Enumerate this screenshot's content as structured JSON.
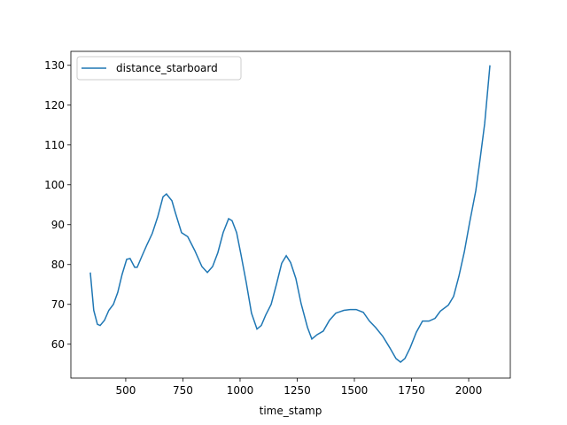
{
  "chart_data": {
    "type": "line",
    "x_label": "time_stamp",
    "xlim": [
      260,
      2182
    ],
    "xticks": [
      500,
      750,
      1000,
      1250,
      1500,
      1750,
      2000
    ],
    "ylim": [
      51.5,
      133.5
    ],
    "yticks": [
      60,
      70,
      80,
      90,
      100,
      110,
      120,
      130
    ],
    "legend": "upper left",
    "x": [
      345,
      360,
      376,
      388,
      407,
      426,
      446,
      465,
      484,
      504,
      519,
      539,
      550,
      570,
      593,
      616,
      640,
      663,
      678,
      702,
      717,
      744,
      771,
      802,
      833,
      857,
      880,
      903,
      926,
      950,
      965,
      985,
      1004,
      1027,
      1050,
      1074,
      1093,
      1112,
      1136,
      1159,
      1182,
      1202,
      1221,
      1244,
      1267,
      1295,
      1314,
      1337,
      1364,
      1391,
      1419,
      1454,
      1481,
      1508,
      1539,
      1566,
      1593,
      1624,
      1655,
      1682,
      1702,
      1721,
      1744,
      1771,
      1798,
      1826,
      1853,
      1876,
      1911,
      1934,
      1957,
      1981,
      2004,
      2031,
      2050,
      2070,
      2093
    ],
    "series": [
      {
        "name": "distance_starboard",
        "color": "#1f77b4",
        "values": [
          78,
          68.5,
          65,
          64.7,
          66,
          68.5,
          70,
          73,
          77.5,
          81.3,
          81.5,
          79.3,
          79.3,
          82,
          85,
          87.8,
          92,
          97,
          97.7,
          96,
          93,
          88,
          87,
          83.5,
          79.5,
          78,
          79.5,
          83,
          88,
          91.5,
          91,
          88,
          82.5,
          75.5,
          67.8,
          63.8,
          64.7,
          67.3,
          70,
          75,
          80.3,
          82.2,
          80.5,
          76.5,
          70.2,
          64.2,
          61.3,
          62.4,
          63.3,
          66,
          67.8,
          68.5,
          68.7,
          68.7,
          68,
          65.8,
          64.2,
          62,
          59.1,
          56.4,
          55.5,
          56.4,
          59.1,
          63,
          65.8,
          65.8,
          66.5,
          68.3,
          69.8,
          72,
          77,
          83.2,
          90.5,
          98.5,
          106.5,
          115.4,
          130
        ]
      }
    ]
  }
}
